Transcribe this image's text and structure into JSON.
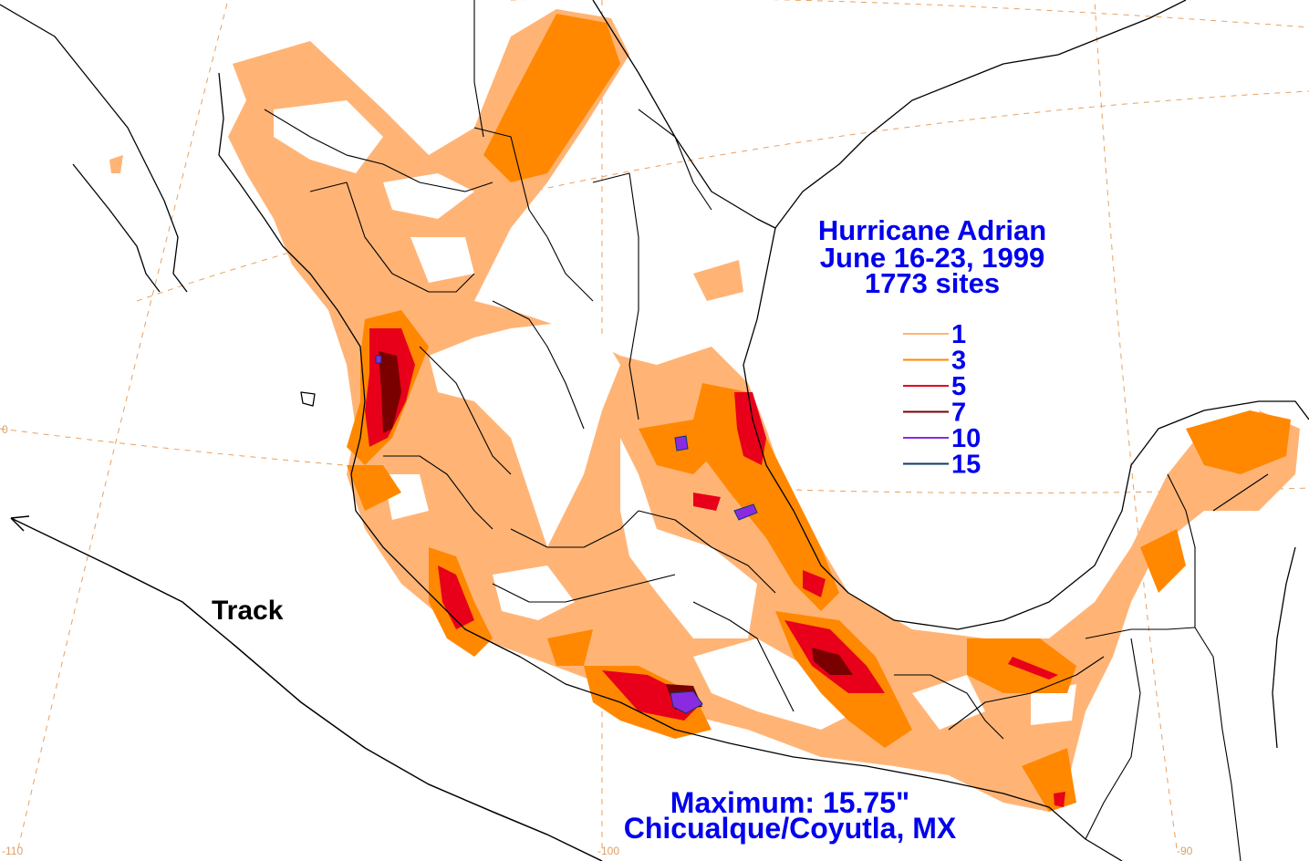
{
  "title": {
    "line1": "Hurricane Adrian",
    "line2": "June 16-23, 1999",
    "line3": "1773 sites"
  },
  "legend": [
    {
      "label": "1",
      "color": "#ffb476"
    },
    {
      "label": "3",
      "color": "#ff8800"
    },
    {
      "label": "5",
      "color": "#e8001b"
    },
    {
      "label": "7",
      "color": "#7a0000"
    },
    {
      "label": "10",
      "color": "#8a2be2"
    },
    {
      "label": "15",
      "color": "#0b3a6b"
    }
  ],
  "track": {
    "label": "Track"
  },
  "maximum": {
    "line1": "Maximum:  15.75\"",
    "line2": "Chicualque/Coyutla, MX"
  },
  "lon_labels": [
    "-110",
    "-100",
    "-90"
  ],
  "lat_labels": [
    "0"
  ],
  "colors": {
    "text": "#0000ee",
    "level1": "#ffb476",
    "level3": "#ff8800",
    "level5": "#e8001b",
    "level7": "#7a0000",
    "level10": "#8a2be2",
    "graticule": "#e8a060"
  }
}
